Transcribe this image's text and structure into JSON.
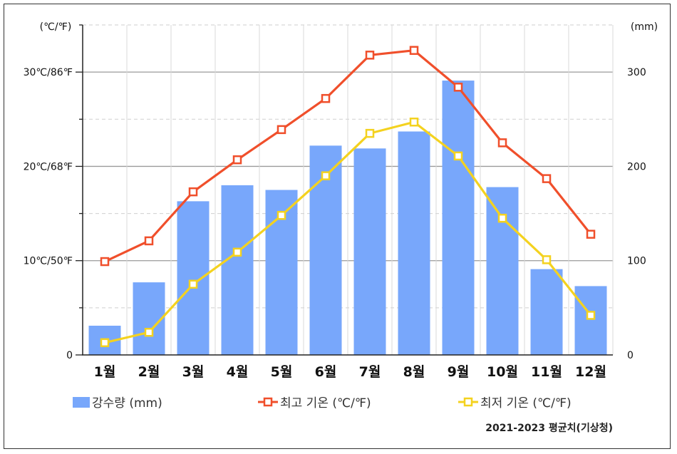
{
  "chart_data": {
    "type": "bar",
    "categories": [
      "1월",
      "2월",
      "3월",
      "4월",
      "5월",
      "6월",
      "7월",
      "8월",
      "9월",
      "10월",
      "11월",
      "12월"
    ],
    "series": [
      {
        "name": "강수량 (mm)",
        "type": "bar",
        "axis": "right",
        "color": "#78a7fb",
        "values": [
          31,
          77,
          163,
          180,
          175,
          222,
          219,
          237,
          291,
          178,
          91,
          73
        ]
      },
      {
        "name": "최고 기온 (℃/℉)",
        "type": "line",
        "axis": "left",
        "color": "#f04f2b",
        "values": [
          9.9,
          12.1,
          17.3,
          20.7,
          23.9,
          27.2,
          31.8,
          32.3,
          28.4,
          22.5,
          18.7,
          12.8
        ]
      },
      {
        "name": "최저 기온 (℃/℉)",
        "type": "line",
        "axis": "left",
        "color": "#f4d21f",
        "values": [
          1.3,
          2.4,
          7.5,
          10.9,
          14.8,
          19.0,
          23.5,
          24.7,
          21.1,
          14.5,
          10.1,
          4.2
        ]
      }
    ],
    "y_left": {
      "label": "(℃/℉)",
      "ticks": [
        "0",
        "10℃/50℉",
        "20℃/68℉",
        "30℃/86℉"
      ],
      "tick_values": [
        0,
        10,
        20,
        30
      ],
      "range": [
        0,
        35
      ]
    },
    "y_right": {
      "label": "(mm)",
      "ticks": [
        "0",
        "100",
        "200",
        "300"
      ],
      "tick_values": [
        0,
        100,
        200,
        300
      ],
      "range": [
        0,
        350
      ]
    },
    "grid": true,
    "legend_position": "bottom",
    "note": "2021-2023 평균치(기상청)"
  }
}
